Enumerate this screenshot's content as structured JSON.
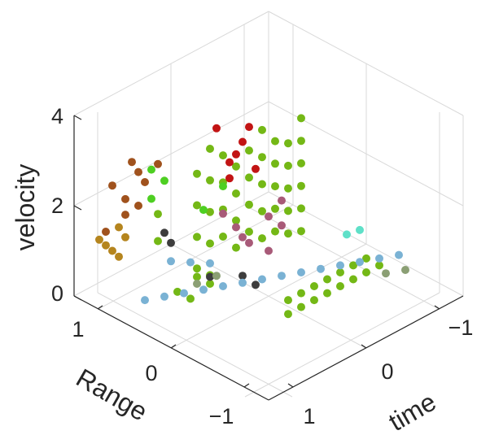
{
  "chart_data": {
    "type": "scatter",
    "projection": "3d",
    "title": "",
    "xlabel": "time",
    "ylabel": "Range",
    "zlabel": "velocity",
    "xlim": [
      -1.5,
      1.5
    ],
    "ylim": [
      -1.5,
      1.5
    ],
    "zlim": [
      0,
      4
    ],
    "xticks": [
      1,
      0,
      -1
    ],
    "xtick_labels": [
      "1",
      "0",
      "−1"
    ],
    "yticks": [
      1,
      0,
      -1
    ],
    "ytick_labels": [
      "1",
      "0",
      "−1"
    ],
    "zticks": [
      0,
      2,
      4
    ],
    "ztick_labels": [
      "0",
      "2",
      "4"
    ],
    "grid": true,
    "series": [
      {
        "color": "#74b816",
        "points": [
          [
            -0.6,
            0.1,
            3.4
          ],
          [
            -0.6,
            0.1,
            2.9
          ],
          [
            -0.6,
            0.1,
            2.4
          ],
          [
            -0.6,
            0.1,
            1.9
          ],
          [
            -0.6,
            0.1,
            1.4
          ],
          [
            -0.6,
            0.1,
            0.9
          ],
          [
            -0.4,
            0.1,
            3.0
          ],
          [
            -0.4,
            0.1,
            2.5
          ],
          [
            -0.4,
            0.1,
            2.0
          ],
          [
            -0.4,
            0.1,
            1.5
          ],
          [
            -0.4,
            0.1,
            1.0
          ],
          [
            -0.2,
            0.1,
            3.2
          ],
          [
            -0.2,
            0.1,
            2.7
          ],
          [
            -0.2,
            0.1,
            2.2
          ],
          [
            -0.2,
            0.1,
            1.7
          ],
          [
            -0.2,
            0.1,
            1.2
          ],
          [
            0.0,
            0.1,
            3.6
          ],
          [
            0.0,
            0.1,
            3.0
          ],
          [
            0.0,
            0.1,
            2.4
          ],
          [
            0.0,
            0.1,
            1.8
          ],
          [
            0.0,
            0.1,
            1.2
          ],
          [
            0.2,
            0.1,
            3.3
          ],
          [
            0.2,
            0.1,
            2.7
          ],
          [
            0.2,
            0.1,
            2.1
          ],
          [
            0.2,
            0.1,
            1.5
          ],
          [
            0.4,
            0.1,
            3.1
          ],
          [
            0.4,
            0.1,
            2.5
          ],
          [
            0.4,
            0.1,
            1.9
          ],
          [
            0.4,
            0.1,
            1.3
          ],
          [
            0.6,
            0.1,
            3.5
          ],
          [
            0.6,
            0.1,
            2.9
          ],
          [
            0.6,
            0.1,
            2.3
          ],
          [
            0.6,
            0.1,
            1.7
          ],
          [
            0.8,
            0.1,
            3.8
          ],
          [
            0.8,
            0.1,
            3.1
          ],
          [
            0.8,
            0.1,
            2.4
          ],
          [
            0.8,
            0.1,
            1.7
          ],
          [
            0.8,
            0.1,
            1.0
          ],
          [
            1.0,
            0.1,
            3.4
          ],
          [
            1.0,
            0.1,
            2.7
          ],
          [
            1.0,
            0.1,
            2.0
          ],
          [
            1.0,
            0.1,
            1.3
          ],
          [
            -0.9,
            -0.6,
            0.6
          ],
          [
            -0.7,
            -0.6,
            0.6
          ],
          [
            -0.5,
            -0.6,
            0.6
          ],
          [
            -0.3,
            -0.6,
            0.6
          ],
          [
            -0.1,
            -0.6,
            0.6
          ],
          [
            0.1,
            -0.6,
            0.6
          ],
          [
            0.3,
            -0.6,
            0.6
          ],
          [
            -0.9,
            -0.8,
            0.6
          ],
          [
            -0.7,
            -0.8,
            0.6
          ],
          [
            -0.5,
            -0.8,
            0.6
          ],
          [
            -0.3,
            -0.8,
            0.6
          ],
          [
            -0.1,
            -0.8,
            0.6
          ],
          [
            0.1,
            -0.8,
            0.6
          ],
          [
            0.3,
            -0.8,
            0.6
          ],
          [
            0.5,
            -0.8,
            0.6
          ],
          [
            0.9,
            0.3,
            0.4
          ],
          [
            0.9,
            0.5,
            0.4
          ],
          [
            0.6,
            0.3,
            0.5
          ],
          [
            0.6,
            0.5,
            0.5
          ],
          [
            1.1,
            0.6,
            2.2
          ],
          [
            1.1,
            0.6,
            1.6
          ]
        ]
      },
      {
        "color": "#4ecf22",
        "points": [
          [
            0.9,
            0.9,
            2.8
          ],
          [
            0.7,
            0.9,
            2.4
          ],
          [
            0.8,
            1.0,
            2.0
          ],
          [
            0.2,
            0.5,
            2.2
          ],
          [
            0.3,
            0.7,
            1.6
          ]
        ]
      },
      {
        "color": "#a0521d",
        "points": [
          [
            1.2,
            0.9,
            3.2
          ],
          [
            1.1,
            0.9,
            2.9
          ],
          [
            1.0,
            0.9,
            2.6
          ],
          [
            1.2,
            1.0,
            2.3
          ],
          [
            1.0,
            1.0,
            2.0
          ],
          [
            1.1,
            1.1,
            1.8
          ],
          [
            1.3,
            1.1,
            2.6
          ],
          [
            0.9,
            0.8,
            3.0
          ],
          [
            1.3,
            1.2,
            1.5
          ]
        ]
      },
      {
        "color": "#b5851e",
        "points": [
          [
            1.3,
            1.2,
            1.2
          ],
          [
            1.2,
            1.2,
            1.0
          ],
          [
            1.4,
            1.2,
            1.4
          ],
          [
            1.1,
            1.1,
            1.3
          ],
          [
            1.2,
            1.1,
            1.6
          ],
          [
            1.3,
            1.0,
            1.1
          ]
        ]
      },
      {
        "color": "#c21414",
        "points": [
          [
            -0.2,
            0.6,
            2.8
          ],
          [
            -0.1,
            0.6,
            2.6
          ],
          [
            0.0,
            0.6,
            2.5
          ],
          [
            -0.3,
            0.5,
            2.2
          ],
          [
            0.1,
            0.5,
            2.3
          ],
          [
            -0.4,
            0.7,
            2.9
          ],
          [
            0.0,
            0.8,
            3.1
          ]
        ]
      },
      {
        "color": "#a85a78",
        "points": [
          [
            0.3,
            0.2,
            1.6
          ],
          [
            0.2,
            0.2,
            1.3
          ],
          [
            0.1,
            0.2,
            1.1
          ],
          [
            0.4,
            0.3,
            1.9
          ],
          [
            0.0,
            0.0,
            1.0
          ],
          [
            -0.3,
            0.3,
            1.3
          ],
          [
            -0.5,
            0.3,
            1.5
          ],
          [
            -0.4,
            0.2,
            1.1
          ]
        ]
      },
      {
        "color": "#3d3d3d",
        "points": [
          [
            0.8,
            0.8,
            1.4
          ],
          [
            0.7,
            0.8,
            1.1
          ],
          [
            0.3,
            0.1,
            0.6
          ],
          [
            0.2,
            0.0,
            0.4
          ],
          [
            0.5,
            0.4,
            0.5
          ]
        ]
      },
      {
        "color": "#7ab2d4",
        "points": [
          [
            1.4,
            0.5,
            0.6
          ],
          [
            1.2,
            0.4,
            0.6
          ],
          [
            1.0,
            0.3,
            0.6
          ],
          [
            0.8,
            0.2,
            0.6
          ],
          [
            0.6,
            0.1,
            0.6
          ],
          [
            0.4,
            0.0,
            0.6
          ],
          [
            0.2,
            -0.1,
            0.6
          ],
          [
            0.0,
            -0.2,
            0.6
          ],
          [
            -0.2,
            -0.3,
            0.6
          ],
          [
            -0.4,
            -0.4,
            0.6
          ],
          [
            -0.6,
            -0.5,
            0.6
          ],
          [
            -0.8,
            -0.6,
            0.6
          ],
          [
            -1.0,
            -0.7,
            0.6
          ],
          [
            -1.2,
            -0.8,
            0.6
          ],
          [
            0.9,
            0.6,
            1.0
          ],
          [
            0.7,
            0.5,
            0.9
          ],
          [
            0.5,
            0.4,
            0.8
          ]
        ]
      },
      {
        "color": "#5fe0c8",
        "points": [
          [
            -0.9,
            -0.3,
            0.9
          ],
          [
            -1.0,
            -0.4,
            1.0
          ]
        ]
      },
      {
        "color": "#8b9f74",
        "points": [
          [
            0.7,
            0.4,
            0.5
          ],
          [
            0.5,
            0.3,
            0.6
          ],
          [
            -0.9,
            -0.9,
            0.5
          ],
          [
            -1.1,
            -1.0,
            0.5
          ]
        ]
      }
    ]
  }
}
